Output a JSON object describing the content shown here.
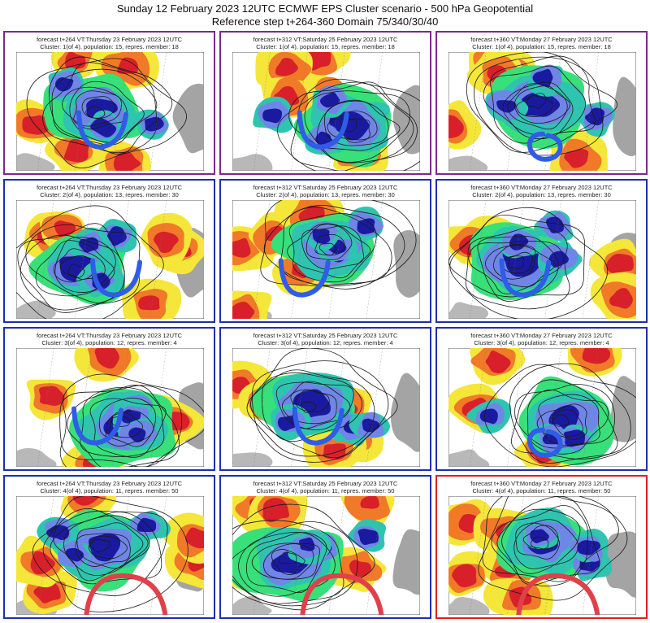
{
  "header": {
    "title_line1": "Sunday 12 February 2023 12UTC ECMWF EPS Cluster scenario - 500 hPa Geopotential",
    "title_line2": "Reference step t+264-360 Domain 75/340/30/40"
  },
  "colors": {
    "border_default": "#1c2fb0",
    "border_cluster1": "#7a2a8c",
    "border_highlight": "#e02020",
    "annotation_blue": "#2f5de8",
    "annotation_red": "#e0404a",
    "anomaly_strong_negative": "#1a1aa0",
    "anomaly_negative": "#6f86e6",
    "anomaly_weak_negative": "#2ec4b0",
    "anomaly_slight_negative": "#38e07a",
    "anomaly_weak_positive": "#f5e63a",
    "anomaly_positive": "#f07a28",
    "anomaly_strong_positive": "#d8202a",
    "land_mask": "#9a9a9a"
  },
  "panels": [
    {
      "line1": "forecast t+264 VT:Thursday 23 February 2023 12UTC",
      "line2": "Cluster: 1(of 4), population: 15, repres. member: 18",
      "border": "cluster1",
      "annotation": "blue-u"
    },
    {
      "line1": "forecast t+312 VT:Saturday 25 February 2023 12UTC",
      "line2": "Cluster: 1(of 4), population: 15, repres. member: 18",
      "border": "cluster1",
      "annotation": "blue-u"
    },
    {
      "line1": "forecast t+360 VT:Monday 27 February 2023 12UTC",
      "line2": "Cluster: 1(of 4), population: 15, repres. member: 18",
      "border": "cluster1",
      "annotation": "blue-circle"
    },
    {
      "line1": "forecast t+264 VT:Thursday 23 February 2023 12UTC",
      "line2": "Cluster: 2(of 4), population: 13, repres. member: 30",
      "border": "default",
      "annotation": "blue-u"
    },
    {
      "line1": "forecast t+312 VT:Saturday 25 February 2023 12UTC",
      "line2": "Cluster: 2(of 4), population: 13, repres. member: 30",
      "border": "default",
      "annotation": "blue-u"
    },
    {
      "line1": "forecast t+360 VT:Monday 27 February 2023 12UTC",
      "line2": "Cluster: 2(of 4), population: 13, repres. member: 30",
      "border": "default",
      "annotation": "blue-u"
    },
    {
      "line1": "forecast t+264 VT:Thursday 23 February 2023 12UTC",
      "line2": "Cluster: 3(of 4), population: 12, repres. member: 4",
      "border": "default",
      "annotation": "blue-u"
    },
    {
      "line1": "forecast t+312 VT:Saturday 25 February 2023 12UTC",
      "line2": "Cluster: 3(of 4), population: 12, repres. member: 4",
      "border": "default",
      "annotation": "blue-u"
    },
    {
      "line1": "forecast t+360 VT:Monday 27 February 2023 12UTC",
      "line2": "Cluster: 3(of 4), population: 12, repres. member: 4",
      "border": "default",
      "annotation": "blue-circle"
    },
    {
      "line1": "forecast t+264 VT:Thursday 23 February 2023 12UTC",
      "line2": "Cluster: 4(of 4), population: 11, repres. member: 50",
      "border": "default",
      "annotation": "red-arc"
    },
    {
      "line1": "forecast t+312 VT:Saturday 25 February 2023 12UTC",
      "line2": "Cluster: 4(of 4), population: 11, repres. member: 50",
      "border": "default",
      "annotation": "red-arc"
    },
    {
      "line1": "forecast t+360 VT:Monday 27 February 2023 12UTC",
      "line2": "Cluster: 4(of 4), population: 11, repres. member: 50",
      "border": "highlight",
      "annotation": "red-arc"
    }
  ]
}
